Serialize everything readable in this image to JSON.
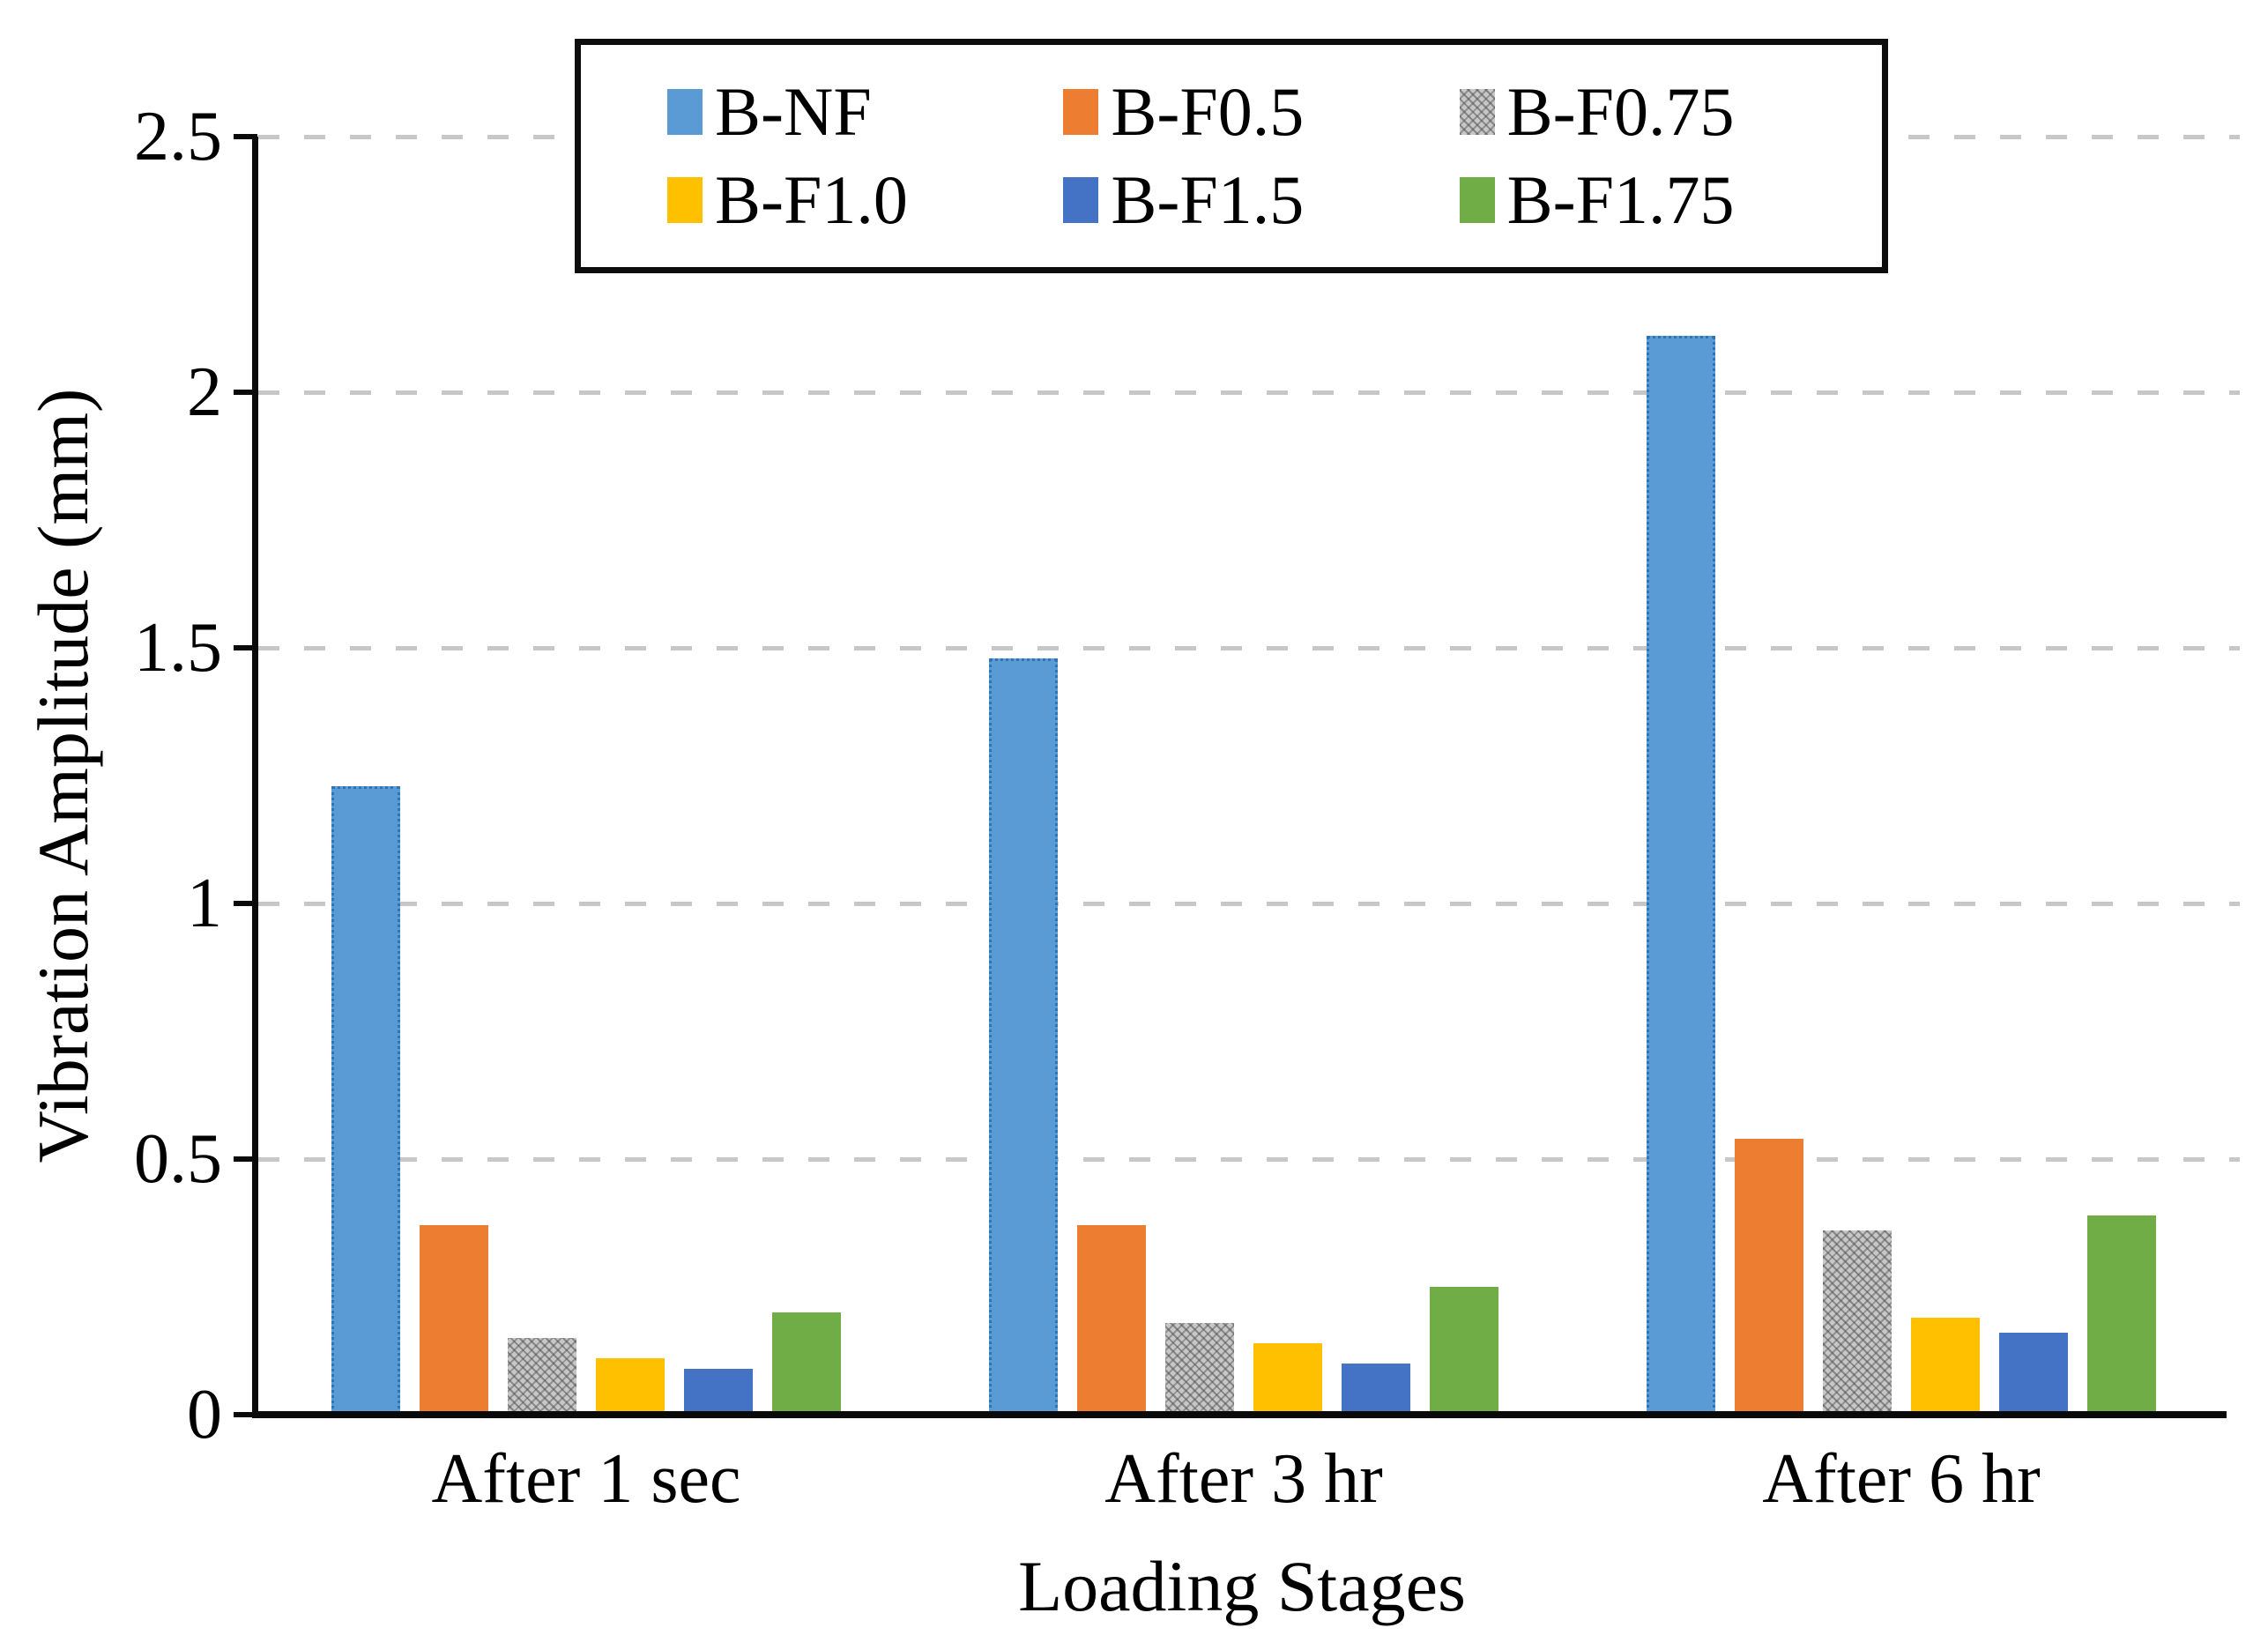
{
  "chart_data": {
    "type": "bar",
    "title": "",
    "xlabel": "Loading Stages",
    "ylabel": "Vibration Amplitude (mm)",
    "categories": [
      "After 1 sec",
      "After 3 hr",
      "After 6 hr"
    ],
    "series": [
      {
        "name": "B-NF",
        "color": "#5b9bd5",
        "edge": "dotted-darker-blue",
        "values": [
          1.23,
          1.48,
          2.11
        ]
      },
      {
        "name": "B-F0.5",
        "color": "#ed7d31",
        "values": [
          0.37,
          0.37,
          0.54
        ]
      },
      {
        "name": "B-F0.75",
        "color": "#a5a5a5",
        "pattern": "diagonal-speckle",
        "values": [
          0.15,
          0.18,
          0.36
        ]
      },
      {
        "name": "B-F1.0",
        "color": "#ffc000",
        "values": [
          0.11,
          0.14,
          0.19
        ]
      },
      {
        "name": "B-F1.5",
        "color": "#4472c4",
        "values": [
          0.09,
          0.1,
          0.16
        ]
      },
      {
        "name": "B-F1.75",
        "color": "#70ad47",
        "values": [
          0.2,
          0.25,
          0.39
        ]
      }
    ],
    "ylim": [
      0,
      2.5
    ],
    "ytick_step": 0.5,
    "yticks": [
      "0",
      "0.5",
      "1",
      "1.5",
      "2",
      "2.5"
    ],
    "grid": "horizontal dashed light-gray",
    "legend_position": "top-center boxed, 2 rows x 3 columns",
    "gridline_color": "#c7c7c7",
    "axis_color": "#0a0a0a"
  }
}
